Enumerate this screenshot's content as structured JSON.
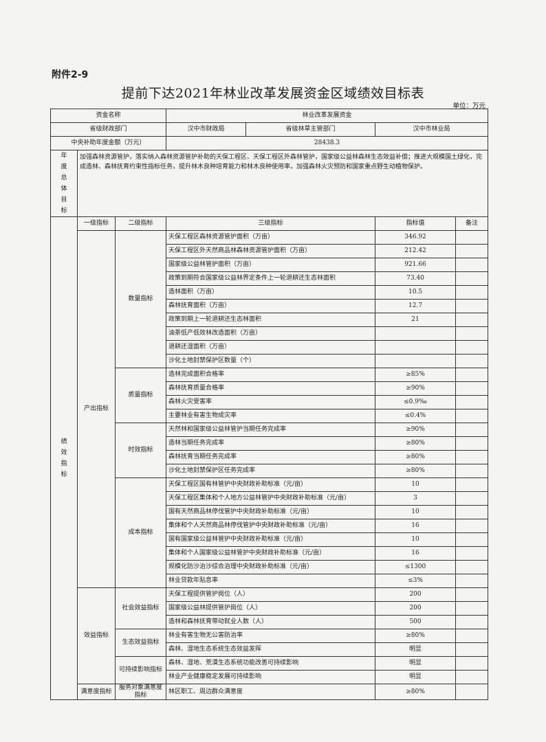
{
  "attachment_label": "附件2-9",
  "title": "提前下达2021年林业改革发展资金区域绩效目标表",
  "unit": "单位：万元",
  "header": {
    "fund_name_label": "资金名称",
    "fund_name_value": "林业改革发展资金",
    "finance_dept_label": "省级财政部门",
    "finance_dept_value": "汉中市财政局",
    "forestry_dept_label": "省级林草主管部门",
    "forestry_dept_value": "汉中市林业局",
    "amount_label": "中央补助年度金额（万元）",
    "amount_value": "28438.3",
    "goal_label": "年度总体目标",
    "goal_text": "加强森林资源管护，落实纳入森林资源管护补助的天保工程区、天保工程区外森林管护，国家级公益林森林生态效益补偿；推进大规模国土绿化，完成造林、森林抚育约束性指标任务，提升林木良种培育能力和林木良种使用率，加强森林火灾预防和国家重点野生动植物保护。"
  },
  "indicators": {
    "section_label": "绩效指标",
    "columns": [
      "一级指标",
      "二级指标",
      "三级指标",
      "指标值",
      "备注"
    ],
    "level1": [
      {
        "name": "产出指标",
        "level2": [
          {
            "name": "数量指标",
            "items": [
              {
                "name": "天保工程区森林资源管护面积（万亩）",
                "value": "346.92"
              },
              {
                "name": "天保工程区外天然商品林森林资源管护面积（万亩）",
                "value": "212.42"
              },
              {
                "name": "国家级公益林管护面积（万亩）",
                "value": "921.66"
              },
              {
                "name": "政策到期符合国家级公益林界定条件上一轮退耕还生态林面积",
                "value": "73.40"
              },
              {
                "name": "造林面积（万亩）",
                "value": "10.5"
              },
              {
                "name": "森林抚育面积（万亩）",
                "value": "12.7"
              },
              {
                "name": "政策到期上一轮退耕还生态林面积",
                "value": "21"
              },
              {
                "name": "油茶低产低效林改造面积（万亩）",
                "value": ""
              },
              {
                "name": "退耕还湿面积（万亩）",
                "value": ""
              },
              {
                "name": "沙化土地封禁保护区数量（个）",
                "value": ""
              }
            ]
          },
          {
            "name": "质量指标",
            "items": [
              {
                "name": "造林完成面积合格率",
                "value": "≥85%"
              },
              {
                "name": "森林抚育质量合格率",
                "value": "≥90%"
              },
              {
                "name": "森林火灾受害率",
                "value": "≤0.9‰"
              },
              {
                "name": "主要林业有害生物成灾率",
                "value": "≤0.4%"
              }
            ]
          },
          {
            "name": "时效指标",
            "items": [
              {
                "name": "天然林和国家级公益林管护当期任务完成率",
                "value": "≥90%"
              },
              {
                "name": "造林当期任务完成率",
                "value": "≥80%"
              },
              {
                "name": "森林抚育当期任务完成率",
                "value": "≥80%"
              },
              {
                "name": "沙化土地封禁保护区任务完成率",
                "value": "≥80%"
              }
            ]
          },
          {
            "name": "成本指标",
            "items": [
              {
                "name": "天保工程区国有林管护中央财政补助标准（元/亩）",
                "value": "10"
              },
              {
                "name": "天保工程区集体和个人地方公益林管护中央财政补助标准（元/亩）",
                "value": "3"
              },
              {
                "name": "国有天然商品林停伐管护中央财政补助标准（元/亩）",
                "value": "10"
              },
              {
                "name": "集体和个人天然商品林停伐管护中央财政补助标准（元/亩）",
                "value": "16"
              },
              {
                "name": "国有国家级公益林管护中央财政补助标准（元/亩）",
                "value": "10"
              },
              {
                "name": "集体和个人国家级公益林管护中央财政补助标准（元/亩）",
                "value": "16"
              },
              {
                "name": "规模化防沙治沙综合治理中央财政补助标准（元/亩）",
                "value": "≤1300"
              },
              {
                "name": "林业贷款年贴息率",
                "value": "≤3%"
              }
            ]
          }
        ]
      },
      {
        "name": "效益指标",
        "level2": [
          {
            "name": "社会效益指标",
            "items": [
              {
                "name": "天保工程提供管护岗位（人）",
                "value": "200"
              },
              {
                "name": "国家级公益林提供管护岗位（人）",
                "value": "200"
              },
              {
                "name": "造林和森林抚育带动就业人数（人）",
                "value": "500"
              }
            ]
          },
          {
            "name": "生态效益指标",
            "items": [
              {
                "name": "林业有害生物无公害防治率",
                "value": "≥80%"
              },
              {
                "name": "森林、湿地生态系统生态效益发挥",
                "value": "明显"
              }
            ]
          },
          {
            "name": "可持续影响指标",
            "items": [
              {
                "name": "森林、湿地、荒漠生态系统功能改善可持续影响",
                "value": "明显"
              },
              {
                "name": "林业产业健康稳定发展可持续影响",
                "value": "明显"
              }
            ]
          }
        ]
      },
      {
        "name": "满意度指标",
        "level2": [
          {
            "name": "服务对象满意度指标",
            "items": [
              {
                "name": "林区职工、周边群众满意度",
                "value": "≥80%"
              }
            ]
          }
        ]
      }
    ]
  }
}
